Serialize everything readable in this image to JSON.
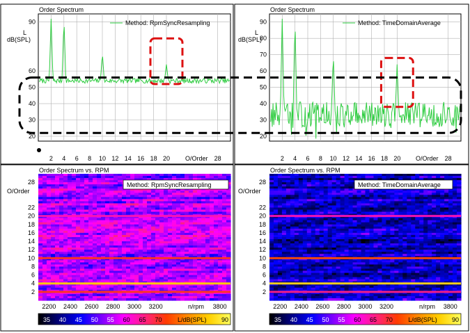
{
  "colors": {
    "line": "#2ecc40",
    "grid": "#b0b0b0",
    "frame": "#000000",
    "red_box": "#dd1111",
    "black_box": "#000000",
    "colorbar": [
      "#000000",
      "#000080",
      "#0000ff",
      "#8000ff",
      "#ff00ff",
      "#ff2080",
      "#ff3c00",
      "#ff8c00",
      "#ffd000",
      "#ffff60"
    ]
  },
  "chart_data": [
    {
      "id": "spectrum_left",
      "type": "line",
      "title": "Order Spectrum",
      "legend": "Method: RpmSyncResampling",
      "legend_position": "top-right",
      "ylabel": "L\ndB(SPL)",
      "ylabel_line1": "L",
      "ylabel_line2": "dB(SPL)",
      "xlabel": "O/Order",
      "xlim": [
        0,
        30
      ],
      "ylim": [
        17,
        95
      ],
      "grid": true,
      "x_ticks": [
        "2",
        "4",
        "6",
        "8",
        "10",
        "12",
        "14",
        "16",
        "18",
        "20",
        "28"
      ],
      "y_ticks": [
        "20",
        "30",
        "40",
        "50",
        "60",
        "90"
      ],
      "baseline": 54,
      "noise": 1.5,
      "peaks": [
        [
          2,
          92
        ],
        [
          4,
          92
        ],
        [
          10,
          71
        ],
        [
          20,
          64
        ]
      ],
      "annotation_box": {
        "x_range": [
          17.5,
          22.5
        ],
        "y_range": [
          52,
          80
        ]
      }
    },
    {
      "id": "spectrum_right",
      "type": "line",
      "title": "Order Spectrum",
      "legend": "Method: TimeDomainAverage",
      "legend_position": "top-right",
      "ylabel_line1": "L",
      "ylabel_line2": "dB(SPL)",
      "xlabel": "O/Order",
      "xlim": [
        0,
        30
      ],
      "ylim": [
        17,
        95
      ],
      "grid": true,
      "x_ticks": [
        "2",
        "4",
        "6",
        "8",
        "10",
        "12",
        "14",
        "16",
        "18",
        "20",
        "28"
      ],
      "y_ticks": [
        "20",
        "30",
        "40",
        "50",
        "60",
        "70",
        "80",
        "90"
      ],
      "baseline": 33,
      "noise": 8,
      "peaks": [
        [
          2,
          92
        ],
        [
          4,
          92
        ],
        [
          10,
          71
        ],
        [
          20,
          64
        ]
      ],
      "annotation_box": {
        "x_range": [
          17.5,
          22.5
        ],
        "y_range": [
          38,
          68
        ]
      }
    },
    {
      "id": "colormap_left",
      "type": "heatmap",
      "title": "Order Spectrum vs. RPM",
      "legend": "Method: RpmSyncResampling",
      "ylabel": "O/Order",
      "xlabel": "n/rpm",
      "xlim": [
        2100,
        3900
      ],
      "ylim": [
        0,
        30
      ],
      "x_ticks": [
        "2200",
        "2400",
        "2600",
        "2800",
        "3000",
        "3200",
        "3800"
      ],
      "y_ticks": [
        "2",
        "4",
        "6",
        "8",
        "10",
        "12",
        "14",
        "16",
        "18",
        "20",
        "22",
        "28"
      ],
      "base_level": 52,
      "order_lines": [
        [
          2,
          64
        ],
        [
          4,
          80
        ],
        [
          10,
          64
        ],
        [
          20,
          58
        ]
      ],
      "colorbar_label": "L/dB(SPL)",
      "colorbar_ticks": [
        "35",
        "40",
        "45",
        "50",
        "55",
        "60",
        "65",
        "70",
        "90"
      ]
    },
    {
      "id": "colormap_right",
      "type": "heatmap",
      "title": "Order Spectrum vs. RPM",
      "legend": "Method: TimeDomainAverage",
      "ylabel": "O/Order",
      "xlabel": "n/rpm",
      "xlim": [
        2100,
        3900
      ],
      "ylim": [
        0,
        30
      ],
      "x_ticks": [
        "2200",
        "2400",
        "2600",
        "2800",
        "3000",
        "3200",
        "3800"
      ],
      "y_ticks": [
        "2",
        "4",
        "6",
        "8",
        "10",
        "12",
        "14",
        "16",
        "18",
        "20",
        "22",
        "28"
      ],
      "base_level": 43,
      "order_lines": [
        [
          2,
          60
        ],
        [
          4,
          82
        ],
        [
          10,
          66
        ],
        [
          20,
          58
        ]
      ],
      "colorbar_label": "L/dB(SPL)",
      "colorbar_ticks": [
        "35",
        "40",
        "45",
        "50",
        "55",
        "60",
        "65",
        "70",
        "90"
      ]
    }
  ],
  "overlay": {
    "dashed_band_y_range": [
      22,
      56
    ]
  }
}
